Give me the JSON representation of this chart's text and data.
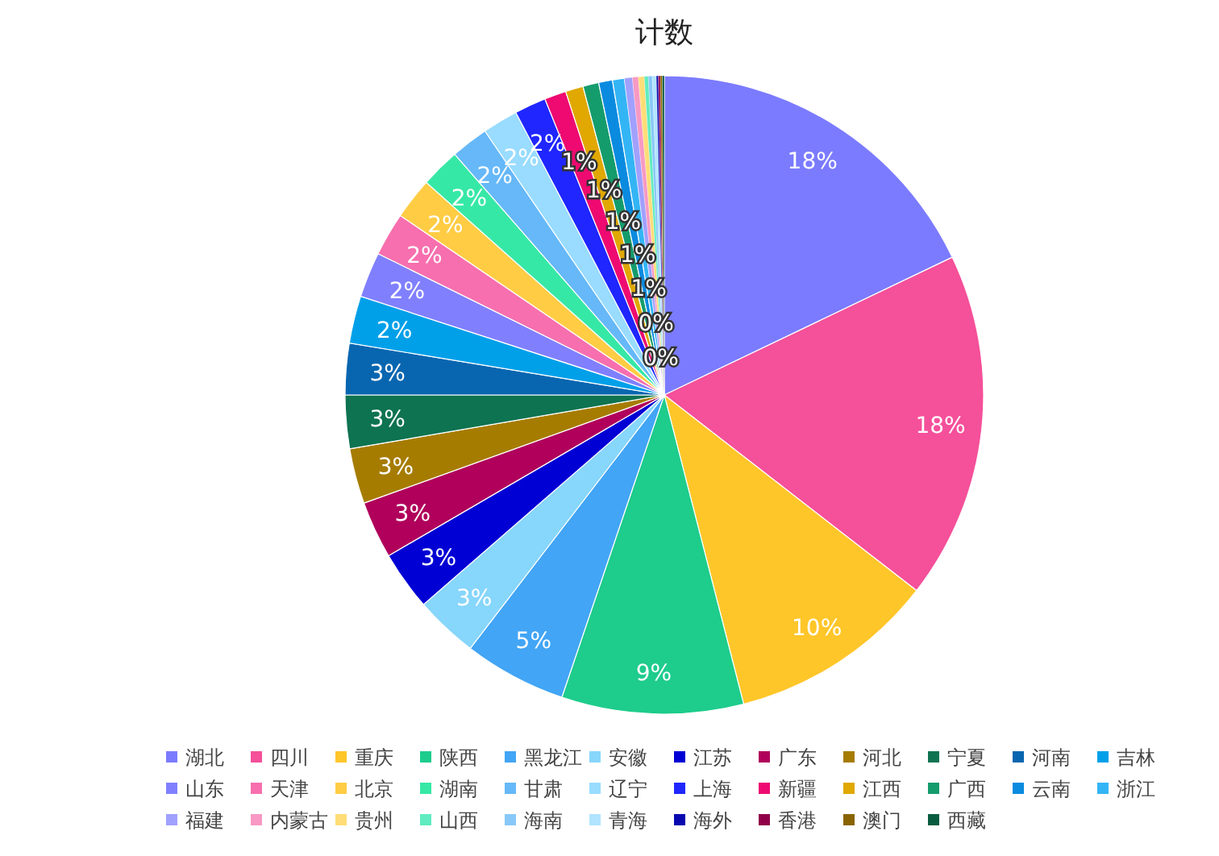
{
  "chart_data": {
    "type": "pie",
    "title": "计数",
    "legend": "bottom",
    "categories": [
      "湖北",
      "四川",
      "重庆",
      "陕西",
      "黑龙江",
      "安徽",
      "江苏",
      "广东",
      "河北",
      "宁夏",
      "河南",
      "吉林",
      "山东",
      "天津",
      "北京",
      "湖南",
      "甘肃",
      "辽宁",
      "上海",
      "新疆",
      "江西",
      "广西",
      "云南",
      "浙江",
      "福建",
      "内蒙古",
      "贵州",
      "山西",
      "海南",
      "青海",
      "海外",
      "香港",
      "澳门",
      "西藏"
    ],
    "values": [
      17.9,
      17.6,
      10.5,
      9.2,
      5.2,
      3.2,
      3.0,
      2.9,
      2.8,
      2.7,
      2.6,
      2.4,
      2.3,
      2.2,
      2.1,
      2.0,
      1.9,
      1.8,
      1.6,
      1.1,
      0.9,
      0.8,
      0.7,
      0.6,
      0.4,
      0.3,
      0.3,
      0.2,
      0.2,
      0.2,
      0.1,
      0.1,
      0.1,
      0.1
    ],
    "value_labels": [
      "18%",
      "18%",
      "10%",
      "9%",
      "5%",
      "3%",
      "3%",
      "3%",
      "3%",
      "3%",
      "3%",
      "2%",
      "2%",
      "2%",
      "2%",
      "2%",
      "2%",
      "2%",
      "2%",
      "1%",
      "1%",
      "1%",
      "1%",
      "1%",
      "0%",
      "0%",
      null,
      null,
      null,
      null,
      null,
      null,
      null,
      null
    ],
    "colors": [
      "#7b7bff",
      "#f5509a",
      "#ffc629",
      "#1ecc8c",
      "#42a5f5",
      "#87d6fb",
      "#0000d4",
      "#b0005b",
      "#a67c00",
      "#0e7350",
      "#0866b0",
      "#00a0e9",
      "#8080ff",
      "#f76fae",
      "#ffcc44",
      "#36e8a6",
      "#66b8f8",
      "#99dcff",
      "#1f26ff",
      "#ee0a70",
      "#e0a800",
      "#159c6c",
      "#0a8be0",
      "#33b5f5",
      "#a0a0ff",
      "#f799c4",
      "#ffdd77",
      "#60ecc0",
      "#88c8f8",
      "#b0e4ff",
      "#0808b0",
      "#900048",
      "#8a6400",
      "#0a5c40"
    ]
  }
}
